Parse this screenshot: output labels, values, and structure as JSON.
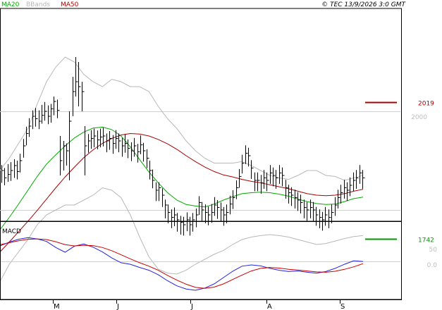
{
  "legend": {
    "ma20": "MA20",
    "bbands": "BBands",
    "ma50": "MA50",
    "copyright": "© TEC 13/9/2026 3:0 GMT"
  },
  "colors": {
    "ma20": "#00aa00",
    "ma50": "#aa0000",
    "bbands": "#b8b8b8",
    "macd": "#2222dd",
    "signal": "#cc0000",
    "bars": "#000000",
    "grid": "#cfcfcf",
    "level_high": "#aa0000",
    "level_low": "#009900"
  },
  "chart_data": [
    {
      "type": "line",
      "name": "price",
      "x_labels": [
        "M",
        "J",
        "J",
        "A",
        "S"
      ],
      "y_ticks": [
        "2000"
      ],
      "levels": [
        {
          "label": "2019",
          "value": 2019,
          "color": "#aa0000"
        },
        {
          "label": "1742",
          "value": 1742,
          "color": "#009900"
        }
      ],
      "price_bars": [
        {
          "hi": 1891,
          "lo": 1855,
          "cl": 1880
        },
        {
          "hi": 1885,
          "lo": 1850,
          "cl": 1865
        },
        {
          "hi": 1893,
          "lo": 1857,
          "cl": 1872
        },
        {
          "hi": 1897,
          "lo": 1859,
          "cl": 1880
        },
        {
          "hi": 1903,
          "lo": 1865,
          "cl": 1890
        },
        {
          "hi": 1900,
          "lo": 1862,
          "cl": 1878
        },
        {
          "hi": 1914,
          "lo": 1876,
          "cl": 1900
        },
        {
          "hi": 1944,
          "lo": 1906,
          "cl": 1930
        },
        {
          "hi": 1969,
          "lo": 1931,
          "cl": 1955
        },
        {
          "hi": 1986,
          "lo": 1948,
          "cl": 1970
        },
        {
          "hi": 2002,
          "lo": 1964,
          "cl": 1990
        },
        {
          "hi": 2007,
          "lo": 1969,
          "cl": 1985
        },
        {
          "hi": 2002,
          "lo": 1964,
          "cl": 1980
        },
        {
          "hi": 2013,
          "lo": 1975,
          "cl": 1992
        },
        {
          "hi": 2019,
          "lo": 1981,
          "cl": 2000
        },
        {
          "hi": 2012,
          "lo": 1974,
          "cl": 1990
        },
        {
          "hi": 2015,
          "lo": 1977,
          "cl": 2005
        },
        {
          "hi": 2030,
          "lo": 1992,
          "cl": 2020
        },
        {
          "hi": 2024,
          "lo": 1986,
          "cl": 2002
        },
        {
          "hi": 1950,
          "lo": 1870,
          "cl": 1900
        },
        {
          "hi": 1940,
          "lo": 1880,
          "cl": 1930
        },
        {
          "hi": 1935,
          "lo": 1890,
          "cl": 1920
        },
        {
          "hi": 2000,
          "lo": 1860,
          "cl": 1980
        },
        {
          "hi": 2070,
          "lo": 1990,
          "cl": 2040
        },
        {
          "hi": 2110,
          "lo": 2030,
          "cl": 2060
        },
        {
          "hi": 2100,
          "lo": 2010,
          "cl": 2050
        },
        {
          "hi": 2060,
          "lo": 2000,
          "cl": 2040
        },
        {
          "hi": 1970,
          "lo": 1870,
          "cl": 1930
        },
        {
          "hi": 1954,
          "lo": 1916,
          "cl": 1940
        },
        {
          "hi": 1962,
          "lo": 1924,
          "cl": 1945
        },
        {
          "hi": 1965,
          "lo": 1927,
          "cl": 1950
        },
        {
          "hi": 1961,
          "lo": 1923,
          "cl": 1942
        },
        {
          "hi": 1965,
          "lo": 1927,
          "cl": 1948
        },
        {
          "hi": 1967,
          "lo": 1929,
          "cl": 1950
        },
        {
          "hi": 1955,
          "lo": 1917,
          "cl": 1940
        },
        {
          "hi": 1960,
          "lo": 1922,
          "cl": 1945
        },
        {
          "hi": 1952,
          "lo": 1914,
          "cl": 1935
        },
        {
          "hi": 1962,
          "lo": 1924,
          "cl": 1945
        },
        {
          "hi": 1955,
          "lo": 1917,
          "cl": 1940
        },
        {
          "hi": 1946,
          "lo": 1908,
          "cl": 1930
        },
        {
          "hi": 1954,
          "lo": 1916,
          "cl": 1935
        },
        {
          "hi": 1943,
          "lo": 1905,
          "cl": 1925
        },
        {
          "hi": 1937,
          "lo": 1899,
          "cl": 1920
        },
        {
          "hi": 1946,
          "lo": 1908,
          "cl": 1930
        },
        {
          "hi": 1934,
          "lo": 1896,
          "cl": 1918
        },
        {
          "hi": 1951,
          "lo": 1913,
          "cl": 1932
        },
        {
          "hi": 1936,
          "lo": 1898,
          "cl": 1920
        },
        {
          "hi": 1923,
          "lo": 1885,
          "cl": 1905
        },
        {
          "hi": 1900,
          "lo": 1862,
          "cl": 1880
        },
        {
          "hi": 1882,
          "lo": 1844,
          "cl": 1860
        },
        {
          "hi": 1856,
          "lo": 1818,
          "cl": 1840
        },
        {
          "hi": 1856,
          "lo": 1818,
          "cl": 1845
        },
        {
          "hi": 1844,
          "lo": 1806,
          "cl": 1830
        },
        {
          "hi": 1821,
          "lo": 1783,
          "cl": 1810
        },
        {
          "hi": 1811,
          "lo": 1773,
          "cl": 1795
        },
        {
          "hi": 1801,
          "lo": 1763,
          "cl": 1785
        },
        {
          "hi": 1805,
          "lo": 1767,
          "cl": 1790
        },
        {
          "hi": 1794,
          "lo": 1756,
          "cl": 1780
        },
        {
          "hi": 1788,
          "lo": 1750,
          "cl": 1775
        },
        {
          "hi": 1786,
          "lo": 1748,
          "cl": 1770
        },
        {
          "hi": 1795,
          "lo": 1757,
          "cl": 1780
        },
        {
          "hi": 1786,
          "lo": 1748,
          "cl": 1770
        },
        {
          "hi": 1794,
          "lo": 1756,
          "cl": 1780
        },
        {
          "hi": 1803,
          "lo": 1765,
          "cl": 1790
        },
        {
          "hi": 1828,
          "lo": 1790,
          "cl": 1815
        },
        {
          "hi": 1816,
          "lo": 1778,
          "cl": 1800
        },
        {
          "hi": 1811,
          "lo": 1773,
          "cl": 1795
        },
        {
          "hi": 1807,
          "lo": 1769,
          "cl": 1790
        },
        {
          "hi": 1812,
          "lo": 1774,
          "cl": 1795
        },
        {
          "hi": 1826,
          "lo": 1788,
          "cl": 1810
        },
        {
          "hi": 1820,
          "lo": 1782,
          "cl": 1805
        },
        {
          "hi": 1815,
          "lo": 1777,
          "cl": 1800
        },
        {
          "hi": 1806,
          "lo": 1768,
          "cl": 1790
        },
        {
          "hi": 1811,
          "lo": 1773,
          "cl": 1795
        },
        {
          "hi": 1829,
          "lo": 1791,
          "cl": 1812
        },
        {
          "hi": 1840,
          "lo": 1802,
          "cl": 1825
        },
        {
          "hi": 1860,
          "lo": 1822,
          "cl": 1845
        },
        {
          "hi": 1883,
          "lo": 1845,
          "cl": 1868
        },
        {
          "hi": 1912,
          "lo": 1874,
          "cl": 1895
        },
        {
          "hi": 1931,
          "lo": 1893,
          "cl": 1915
        },
        {
          "hi": 1926,
          "lo": 1888,
          "cl": 1910
        },
        {
          "hi": 1901,
          "lo": 1863,
          "cl": 1885
        },
        {
          "hi": 1876,
          "lo": 1838,
          "cl": 1860
        },
        {
          "hi": 1876,
          "lo": 1838,
          "cl": 1860
        },
        {
          "hi": 1871,
          "lo": 1833,
          "cl": 1855
        },
        {
          "hi": 1881,
          "lo": 1843,
          "cl": 1865
        },
        {
          "hi": 1876,
          "lo": 1838,
          "cl": 1860
        },
        {
          "hi": 1891,
          "lo": 1853,
          "cl": 1875
        },
        {
          "hi": 1886,
          "lo": 1848,
          "cl": 1870
        },
        {
          "hi": 1881,
          "lo": 1843,
          "cl": 1865
        },
        {
          "hi": 1891,
          "lo": 1853,
          "cl": 1875
        },
        {
          "hi": 1886,
          "lo": 1848,
          "cl": 1870
        },
        {
          "hi": 1861,
          "lo": 1823,
          "cl": 1845
        },
        {
          "hi": 1851,
          "lo": 1813,
          "cl": 1835
        },
        {
          "hi": 1846,
          "lo": 1808,
          "cl": 1830
        },
        {
          "hi": 1841,
          "lo": 1803,
          "cl": 1825
        },
        {
          "hi": 1836,
          "lo": 1798,
          "cl": 1820
        },
        {
          "hi": 1831,
          "lo": 1793,
          "cl": 1815
        },
        {
          "hi": 1821,
          "lo": 1783,
          "cl": 1805
        },
        {
          "hi": 1816,
          "lo": 1778,
          "cl": 1800
        },
        {
          "hi": 1821,
          "lo": 1783,
          "cl": 1805
        },
        {
          "hi": 1816,
          "lo": 1778,
          "cl": 1800
        },
        {
          "hi": 1806,
          "lo": 1768,
          "cl": 1790
        },
        {
          "hi": 1801,
          "lo": 1763,
          "cl": 1785
        },
        {
          "hi": 1796,
          "lo": 1758,
          "cl": 1780
        },
        {
          "hi": 1806,
          "lo": 1768,
          "cl": 1790
        },
        {
          "hi": 1801,
          "lo": 1763,
          "cl": 1785
        },
        {
          "hi": 1811,
          "lo": 1773,
          "cl": 1795
        },
        {
          "hi": 1826,
          "lo": 1788,
          "cl": 1810
        },
        {
          "hi": 1841,
          "lo": 1803,
          "cl": 1825
        },
        {
          "hi": 1851,
          "lo": 1813,
          "cl": 1835
        },
        {
          "hi": 1861,
          "lo": 1823,
          "cl": 1845
        },
        {
          "hi": 1856,
          "lo": 1818,
          "cl": 1840
        },
        {
          "hi": 1866,
          "lo": 1828,
          "cl": 1850
        },
        {
          "hi": 1876,
          "lo": 1838,
          "cl": 1860
        },
        {
          "hi": 1881,
          "lo": 1843,
          "cl": 1865
        },
        {
          "hi": 1891,
          "lo": 1853,
          "cl": 1875
        },
        {
          "hi": 1881,
          "lo": 1843,
          "cl": 1865
        }
      ],
      "series": [
        {
          "name": "MA20",
          "color": "#00aa00",
          "values": [
            1760,
            1785,
            1812,
            1840,
            1868,
            1893,
            1912,
            1930,
            1946,
            1958,
            1966,
            1968,
            1963,
            1950,
            1928,
            1902,
            1877,
            1855,
            1835,
            1820,
            1811,
            1808,
            1806,
            1812,
            1820,
            1827,
            1833,
            1835,
            1836,
            1835,
            1832,
            1828,
            1822,
            1817,
            1813,
            1811,
            1812,
            1817,
            1823,
            1826
          ]
        },
        {
          "name": "MA50",
          "color": "#aa0000",
          "values": [
            1715,
            1735,
            1756,
            1777,
            1799,
            1822,
            1845,
            1867,
            1887,
            1906,
            1922,
            1935,
            1945,
            1952,
            1955,
            1954,
            1950,
            1943,
            1934,
            1923,
            1910,
            1898,
            1887,
            1878,
            1871,
            1867,
            1862,
            1858,
            1855,
            1851,
            1847,
            1843,
            1838,
            1833,
            1830,
            1829,
            1830,
            1833,
            1838,
            1842
          ]
        },
        {
          "name": "BB upper",
          "color": "#b8b8b8",
          "values": [
            1880,
            1905,
            1935,
            1965,
            2015,
            2060,
            2090,
            2110,
            2100,
            2075,
            2060,
            2050,
            2065,
            2060,
            2050,
            2050,
            2040,
            2010,
            1985,
            1965,
            1940,
            1920,
            1905,
            1895,
            1895,
            1895,
            1898,
            1890,
            1880,
            1870,
            1865,
            1862,
            1870,
            1880,
            1880,
            1870,
            1868,
            1860,
            1865,
            1870
          ]
        },
        {
          "name": "BB lower",
          "color": "#b8b8b8",
          "values": [
            1655,
            1690,
            1715,
            1740,
            1770,
            1790,
            1800,
            1810,
            1810,
            1820,
            1830,
            1845,
            1840,
            1825,
            1790,
            1745,
            1705,
            1680,
            1672,
            1670,
            1678,
            1690,
            1700,
            1710,
            1718,
            1730,
            1740,
            1745,
            1748,
            1750,
            1748,
            1745,
            1740,
            1735,
            1730,
            1732,
            1737,
            1742,
            1746,
            1748
          ]
        }
      ]
    },
    {
      "type": "line",
      "name": "MACD",
      "title": "MACD",
      "y_ticks": [
        "50",
        "0.0"
      ],
      "series": [
        {
          "name": "MACD",
          "color": "#2222dd",
          "values": [
            50,
            62,
            71,
            76,
            72,
            64,
            45,
            30,
            49,
            56,
            46,
            31,
            12,
            -3,
            -8,
            -18,
            -27,
            -41,
            -60,
            -76,
            -86,
            -90,
            -83,
            -70,
            -50,
            -30,
            -14,
            -10,
            -13,
            -21,
            -27,
            -31,
            -29,
            -33,
            -36,
            -31,
            -21,
            -8,
            3,
            1
          ]
        },
        {
          "name": "Signal",
          "color": "#cc0000",
          "values": [
            54,
            60,
            66,
            71,
            72,
            70,
            63,
            54,
            50,
            52,
            51,
            45,
            35,
            22,
            9,
            -3,
            -14,
            -27,
            -43,
            -58,
            -71,
            -81,
            -84,
            -80,
            -70,
            -56,
            -42,
            -29,
            -21,
            -18,
            -20,
            -24,
            -26,
            -29,
            -32,
            -33,
            -30,
            -24,
            -16,
            -6
          ]
        }
      ]
    }
  ]
}
